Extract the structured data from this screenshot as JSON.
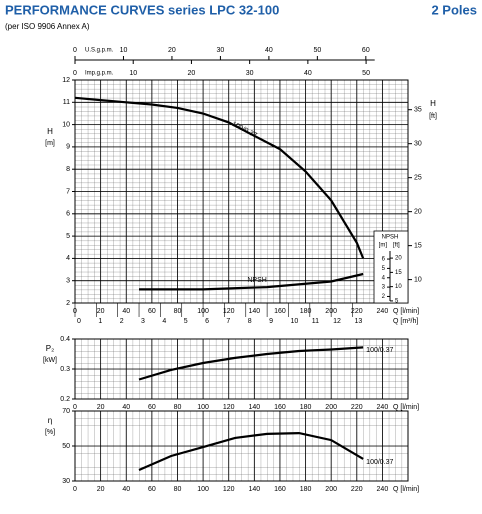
{
  "header": {
    "title": "PERFORMANCE CURVES series LPC 32-100",
    "poles": "2 Poles",
    "subtitle": "(per ISO 9906 Annex A)"
  },
  "chart_data": [
    {
      "type": "line",
      "ylabel": "H",
      "yunit": "[m]",
      "y2label": "H",
      "y2unit": "[ft]",
      "xlabel": "Q [l/min]",
      "xlim": [
        0,
        260
      ],
      "xticks": [
        0,
        20,
        40,
        60,
        80,
        100,
        120,
        140,
        160,
        180,
        200,
        220,
        240
      ],
      "ylim": [
        2,
        12
      ],
      "yticks": [
        2,
        3,
        4,
        5,
        6,
        7,
        8,
        9,
        10,
        11,
        12
      ],
      "y2lim": [
        6.56,
        39.37
      ],
      "y2ticks": [
        10,
        15,
        20,
        25,
        30,
        35
      ],
      "x2label": "Q [m³/h]",
      "x2lim": [
        0,
        15.6
      ],
      "x2ticks": [
        0,
        1,
        2,
        3,
        4,
        5,
        6,
        7,
        8,
        9,
        10,
        11,
        12,
        13
      ],
      "top_axes": [
        {
          "label": "U.S.g.p.m.",
          "lim": [
            0,
            68.7
          ],
          "ticks": [
            0,
            10,
            20,
            30,
            40,
            50,
            60
          ]
        },
        {
          "label": "Imp.g.p.m.",
          "lim": [
            0,
            57.2
          ],
          "ticks": [
            0,
            10,
            20,
            30,
            40,
            50
          ]
        }
      ],
      "npsh_axis": {
        "title": "NPSH",
        "unit": "[m]",
        "unit2": "[ft]",
        "lim": [
          1.3,
          9.0
        ],
        "ticks": [
          2,
          3,
          4,
          5,
          6
        ],
        "lim2": [
          4.27,
          29.5
        ],
        "ticks2": [
          5,
          10,
          15,
          20
        ]
      },
      "grid": true,
      "series": [
        {
          "name": "100/0.37",
          "color": "#000000",
          "x": [
            0,
            20,
            40,
            60,
            80,
            100,
            120,
            140,
            160,
            180,
            200,
            220,
            225
          ],
          "values": [
            11.2,
            11.1,
            11.0,
            10.9,
            10.75,
            10.5,
            10.1,
            9.5,
            8.9,
            7.9,
            6.6,
            4.7,
            4.0
          ]
        },
        {
          "name": "NPSH",
          "color": "#000000",
          "axis": "npsh",
          "x": [
            50,
            100,
            150,
            200,
            225
          ],
          "values": [
            2.75,
            2.75,
            3.0,
            3.6,
            4.4
          ]
        }
      ]
    },
    {
      "type": "line",
      "ylabel": "P₂",
      "yunit": "[kW]",
      "xlabel": "Q [l/min]",
      "xlim": [
        0,
        260
      ],
      "xticks": [
        0,
        20,
        40,
        60,
        80,
        100,
        120,
        140,
        160,
        180,
        200,
        220,
        240
      ],
      "ylim": [
        0.2,
        0.4
      ],
      "yticks": [
        0.2,
        0.3,
        0.4
      ],
      "grid": true,
      "series": [
        {
          "name": "100/0.37",
          "color": "#000000",
          "x": [
            50,
            75,
            100,
            125,
            150,
            175,
            200,
            225
          ],
          "values": [
            0.265,
            0.297,
            0.32,
            0.337,
            0.35,
            0.36,
            0.365,
            0.372
          ]
        }
      ]
    },
    {
      "type": "line",
      "ylabel": "η",
      "yunit": "[%]",
      "xlabel": "Q [l/min]",
      "xlim": [
        0,
        260
      ],
      "xticks": [
        0,
        20,
        40,
        60,
        80,
        100,
        120,
        140,
        160,
        180,
        200,
        220,
        240
      ],
      "ylim": [
        30,
        70
      ],
      "yticks": [
        30,
        50,
        70
      ],
      "grid": true,
      "series": [
        {
          "name": "100/0.37",
          "color": "#000000",
          "x": [
            50,
            75,
            100,
            125,
            150,
            175,
            200,
            225
          ],
          "values": [
            36.3,
            44.3,
            49.4,
            54.6,
            56.9,
            57.4,
            53.4,
            42.6
          ]
        }
      ]
    }
  ]
}
